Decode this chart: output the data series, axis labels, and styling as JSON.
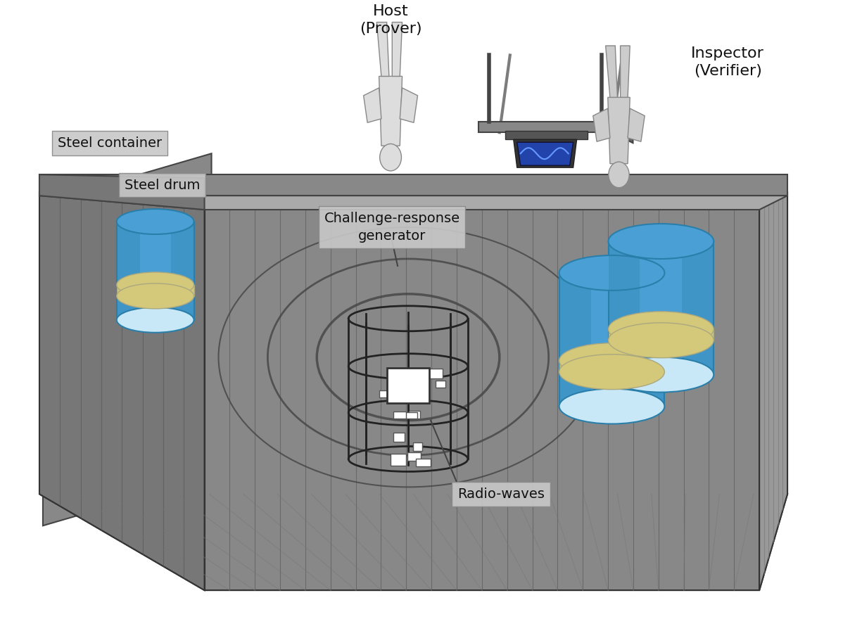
{
  "title": "",
  "bg_color": "#ffffff",
  "container_wall_color": "#888888",
  "container_wall_dark": "#555555",
  "container_wall_light": "#aaaaaa",
  "floor_color": "#888888",
  "floor_dark": "#555555",
  "floor_light": "#bbbbbb",
  "barrel_blue": "#4a9fd4",
  "barrel_blue_dark": "#2a7faa",
  "barrel_band": "#d4c87a",
  "label_bg": "#cccccc",
  "label_text": "#000000",
  "radio_wave_color": "#555555",
  "labels": {
    "steel_container": "Steel container",
    "steel_drum": "Steel drum",
    "challenge_response": "Challenge-response\ngenerator",
    "radio_waves": "Radio-waves",
    "host": "Host\n(Prover)",
    "inspector": "Inspector\n(Verifier)"
  },
  "figsize": [
    11.98,
    8.97
  ],
  "dpi": 100
}
